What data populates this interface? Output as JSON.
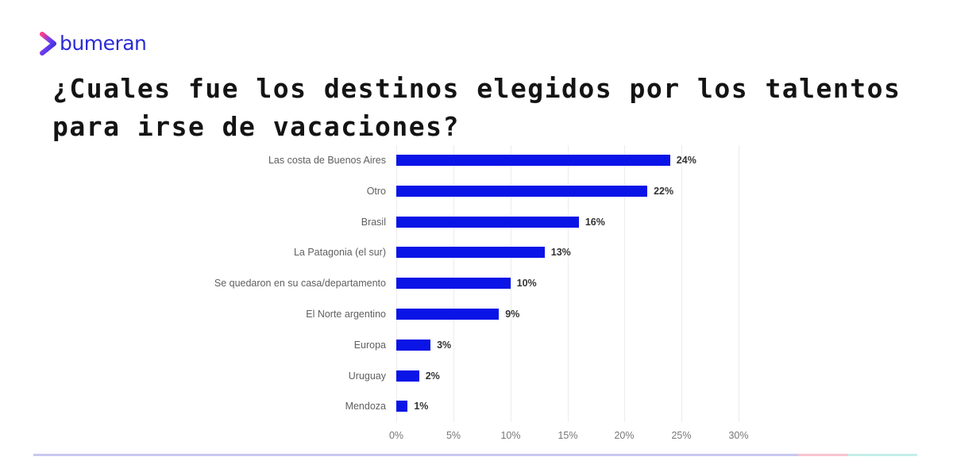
{
  "brand": {
    "logo_text": "bumeran",
    "logo_icon": "chevron-right-icon",
    "color": "#2b2bd6"
  },
  "title": "¿Cuales fue los destinos elegidos por los talentos para irse de vacaciones?",
  "colors": {
    "bar": "#0a14e6",
    "footer_segments": [
      "#c8c8f0",
      "#f6c4cf",
      "#c4eee8"
    ]
  },
  "chart_data": {
    "type": "bar",
    "orientation": "horizontal",
    "title": "¿Cuales fue los destinos elegidos por los talentos para irse de vacaciones?",
    "xlabel": "",
    "ylabel": "",
    "categories": [
      "Las costa de Buenos Aires",
      "Otro",
      "Brasil",
      "La Patagonia (el sur)",
      "Se quedaron en su casa/departamento",
      "El Norte argentino",
      "Europa",
      "Uruguay",
      "Mendoza"
    ],
    "values": [
      24,
      22,
      16,
      13,
      10,
      9,
      3,
      2,
      1
    ],
    "value_labels": [
      "24%",
      "22%",
      "16%",
      "13%",
      "10%",
      "9%",
      "3%",
      "2%",
      "1%"
    ],
    "xlim": [
      0,
      30
    ],
    "x_ticks": [
      "0%",
      "5%",
      "10%",
      "15%",
      "20%",
      "25%",
      "30%"
    ],
    "grid": true,
    "legend": null
  }
}
